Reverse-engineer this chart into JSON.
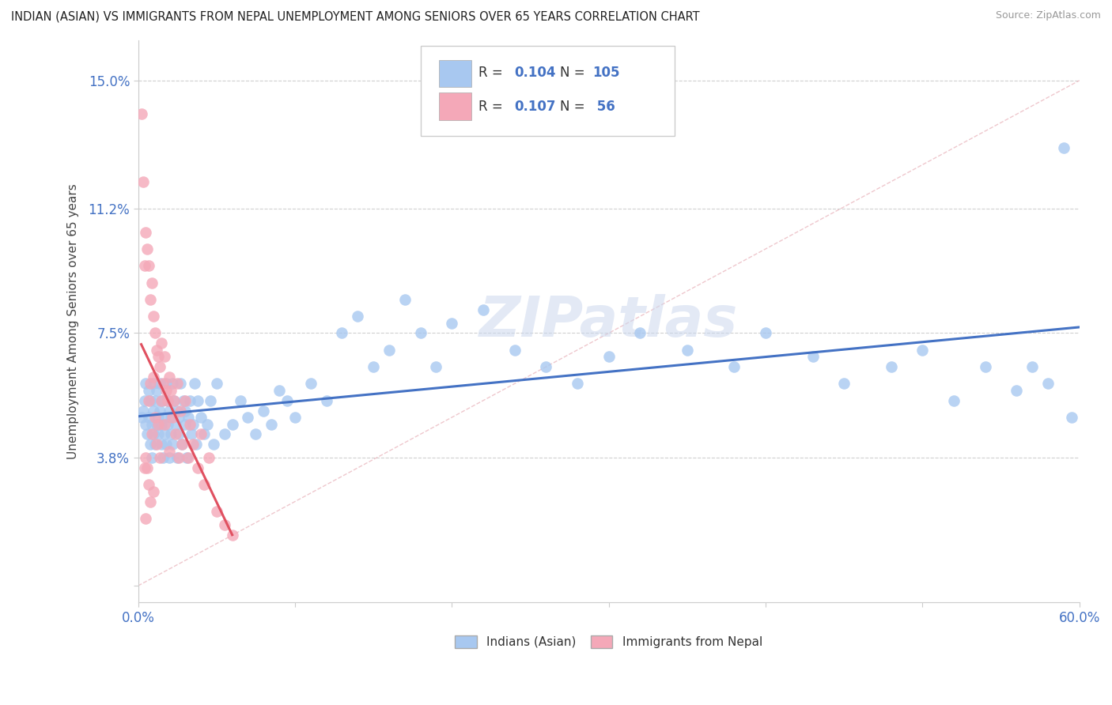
{
  "title": "INDIAN (ASIAN) VS IMMIGRANTS FROM NEPAL UNEMPLOYMENT AMONG SENIORS OVER 65 YEARS CORRELATION CHART",
  "source": "Source: ZipAtlas.com",
  "ylabel": "Unemployment Among Seniors over 65 years",
  "xlim": [
    0.0,
    0.6
  ],
  "ylim": [
    -0.005,
    0.162
  ],
  "yticks": [
    0.0,
    0.038,
    0.075,
    0.112,
    0.15
  ],
  "ytick_labels": [
    "",
    "3.8%",
    "7.5%",
    "11.2%",
    "15.0%"
  ],
  "xticks": [
    0.0,
    0.1,
    0.2,
    0.3,
    0.4,
    0.5,
    0.6
  ],
  "xtick_labels": [
    "0.0%",
    "",
    "",
    "",
    "",
    "",
    "60.0%"
  ],
  "label1": "Indians (Asian)",
  "label2": "Immigrants from Nepal",
  "color1": "#a8c8f0",
  "color2": "#f4a8b8",
  "line1_color": "#4472c4",
  "line2_color": "#e05060",
  "watermark": "ZIPatlas",
  "background_color": "#ffffff",
  "tick_color_blue": "#4472c4",
  "grid_color": "#d0d0d0",
  "Indians_x": [
    0.002,
    0.003,
    0.004,
    0.005,
    0.005,
    0.006,
    0.007,
    0.007,
    0.008,
    0.008,
    0.009,
    0.009,
    0.01,
    0.01,
    0.01,
    0.011,
    0.011,
    0.012,
    0.012,
    0.013,
    0.013,
    0.014,
    0.014,
    0.015,
    0.015,
    0.015,
    0.016,
    0.016,
    0.017,
    0.017,
    0.018,
    0.018,
    0.019,
    0.019,
    0.02,
    0.02,
    0.021,
    0.021,
    0.022,
    0.022,
    0.023,
    0.024,
    0.025,
    0.025,
    0.026,
    0.026,
    0.027,
    0.028,
    0.029,
    0.03,
    0.03,
    0.031,
    0.032,
    0.033,
    0.034,
    0.035,
    0.036,
    0.037,
    0.038,
    0.04,
    0.042,
    0.044,
    0.046,
    0.048,
    0.05,
    0.055,
    0.06,
    0.065,
    0.07,
    0.075,
    0.08,
    0.085,
    0.09,
    0.095,
    0.1,
    0.11,
    0.12,
    0.13,
    0.14,
    0.15,
    0.16,
    0.17,
    0.18,
    0.19,
    0.2,
    0.22,
    0.24,
    0.26,
    0.28,
    0.3,
    0.32,
    0.35,
    0.38,
    0.4,
    0.43,
    0.45,
    0.48,
    0.5,
    0.52,
    0.54,
    0.56,
    0.57,
    0.58,
    0.59,
    0.595
  ],
  "Indians_y": [
    0.05,
    0.052,
    0.055,
    0.048,
    0.06,
    0.045,
    0.058,
    0.05,
    0.042,
    0.055,
    0.048,
    0.038,
    0.052,
    0.06,
    0.045,
    0.055,
    0.042,
    0.048,
    0.058,
    0.05,
    0.045,
    0.052,
    0.06,
    0.042,
    0.055,
    0.048,
    0.038,
    0.055,
    0.05,
    0.045,
    0.06,
    0.042,
    0.055,
    0.048,
    0.052,
    0.038,
    0.05,
    0.045,
    0.06,
    0.042,
    0.055,
    0.048,
    0.052,
    0.038,
    0.05,
    0.045,
    0.06,
    0.042,
    0.055,
    0.048,
    0.052,
    0.038,
    0.05,
    0.055,
    0.045,
    0.048,
    0.06,
    0.042,
    0.055,
    0.05,
    0.045,
    0.048,
    0.055,
    0.042,
    0.06,
    0.045,
    0.048,
    0.055,
    0.05,
    0.045,
    0.052,
    0.048,
    0.058,
    0.055,
    0.05,
    0.06,
    0.055,
    0.075,
    0.08,
    0.065,
    0.07,
    0.085,
    0.075,
    0.065,
    0.078,
    0.082,
    0.07,
    0.065,
    0.06,
    0.068,
    0.075,
    0.07,
    0.065,
    0.075,
    0.068,
    0.06,
    0.065,
    0.07,
    0.055,
    0.065,
    0.058,
    0.065,
    0.06,
    0.13,
    0.05
  ],
  "Nepal_x": [
    0.002,
    0.003,
    0.004,
    0.004,
    0.005,
    0.005,
    0.005,
    0.006,
    0.006,
    0.007,
    0.007,
    0.007,
    0.008,
    0.008,
    0.008,
    0.009,
    0.009,
    0.01,
    0.01,
    0.01,
    0.011,
    0.011,
    0.012,
    0.012,
    0.013,
    0.013,
    0.014,
    0.014,
    0.015,
    0.015,
    0.016,
    0.017,
    0.017,
    0.018,
    0.019,
    0.02,
    0.02,
    0.021,
    0.022,
    0.023,
    0.024,
    0.025,
    0.026,
    0.027,
    0.028,
    0.03,
    0.032,
    0.033,
    0.035,
    0.038,
    0.04,
    0.042,
    0.045,
    0.05,
    0.055,
    0.06
  ],
  "Nepal_y": [
    0.14,
    0.12,
    0.095,
    0.035,
    0.105,
    0.038,
    0.02,
    0.1,
    0.035,
    0.095,
    0.055,
    0.03,
    0.085,
    0.06,
    0.025,
    0.09,
    0.045,
    0.08,
    0.062,
    0.028,
    0.075,
    0.05,
    0.07,
    0.042,
    0.068,
    0.048,
    0.065,
    0.038,
    0.072,
    0.055,
    0.06,
    0.068,
    0.048,
    0.058,
    0.055,
    0.062,
    0.04,
    0.058,
    0.05,
    0.055,
    0.045,
    0.06,
    0.038,
    0.052,
    0.042,
    0.055,
    0.038,
    0.048,
    0.042,
    0.035,
    0.045,
    0.03,
    0.038,
    0.022,
    0.018,
    0.015
  ]
}
